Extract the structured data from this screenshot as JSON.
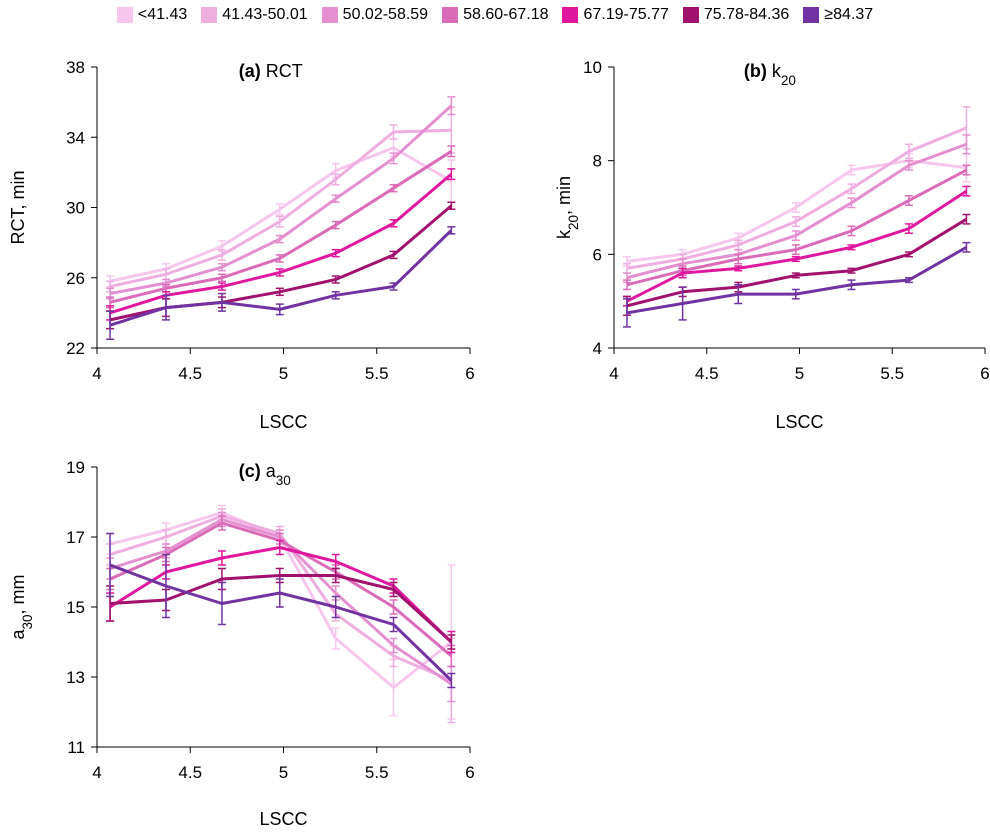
{
  "legend": [
    {
      "label": "<41.43",
      "color": "#f7c6ec"
    },
    {
      "label": "41.43-50.01",
      "color": "#efaee0"
    },
    {
      "label": "50.02-58.59",
      "color": "#e38fd0"
    },
    {
      "label": "58.60-67.18",
      "color": "#da6bb8"
    },
    {
      "label": "67.19-75.77",
      "color": "#e0179f"
    },
    {
      "label": "75.78-84.36",
      "color": "#a1126f"
    },
    {
      "label": "≥84.37",
      "color": "#7133a1"
    }
  ],
  "chart_data": [
    {
      "type": "line",
      "panel": "(a)",
      "title_main": "RCT",
      "ylabel_main": "RCT, min",
      "xlabel": "LSCC",
      "xlim": [
        4,
        6
      ],
      "ylim": [
        22,
        38
      ],
      "xticks": [
        4,
        4.5,
        5,
        5.5,
        6
      ],
      "yticks": [
        22,
        26,
        30,
        34,
        38
      ],
      "x": [
        4.07,
        4.37,
        4.67,
        4.98,
        5.28,
        5.59,
        5.9
      ],
      "series": [
        {
          "name": "<41.43",
          "values": [
            25.8,
            26.5,
            27.8,
            29.9,
            32.1,
            33.4,
            31.5
          ],
          "err": [
            0.3,
            0.3,
            0.3,
            0.3,
            0.4,
            0.5,
            1.2
          ]
        },
        {
          "name": "41.43-50.01",
          "values": [
            25.5,
            26.2,
            27.3,
            29.2,
            31.6,
            34.3,
            34.4
          ],
          "err": [
            0.3,
            0.3,
            0.3,
            0.3,
            0.3,
            0.4,
            1.3
          ]
        },
        {
          "name": "50.02-58.59",
          "values": [
            25.1,
            25.7,
            26.6,
            28.2,
            30.5,
            32.8,
            35.8
          ],
          "err": [
            0.3,
            0.2,
            0.2,
            0.2,
            0.2,
            0.3,
            0.5
          ]
        },
        {
          "name": "58.60-67.18",
          "values": [
            24.6,
            25.4,
            26.0,
            27.1,
            29.0,
            31.1,
            33.2
          ],
          "err": [
            0.3,
            0.2,
            0.2,
            0.2,
            0.2,
            0.2,
            0.3
          ]
        },
        {
          "name": "67.19-75.77",
          "values": [
            24.0,
            25.0,
            25.5,
            26.3,
            27.4,
            29.1,
            31.9
          ],
          "err": [
            0.4,
            0.2,
            0.2,
            0.2,
            0.2,
            0.2,
            0.3
          ]
        },
        {
          "name": "75.78-84.36",
          "values": [
            23.6,
            24.3,
            24.6,
            25.2,
            25.9,
            27.3,
            30.1
          ],
          "err": [
            0.5,
            0.5,
            0.3,
            0.2,
            0.2,
            0.2,
            0.2
          ]
        },
        {
          "name": "≥84.37",
          "values": [
            23.3,
            24.3,
            24.6,
            24.2,
            25.0,
            25.5,
            28.7
          ],
          "err": [
            0.8,
            0.7,
            0.5,
            0.3,
            0.2,
            0.2,
            0.2
          ]
        }
      ]
    },
    {
      "type": "line",
      "panel": "(b)",
      "title_main": "k",
      "title_sub": "20",
      "ylabel_main": "k",
      "ylabel_sub": "20",
      "ylabel_suffix": ", min",
      "xlabel": "LSCC",
      "xlim": [
        4,
        6
      ],
      "ylim": [
        4,
        10
      ],
      "xticks": [
        4,
        4.5,
        5,
        5.5,
        6
      ],
      "yticks": [
        4,
        6,
        8,
        10
      ],
      "x": [
        4.07,
        4.37,
        4.67,
        4.98,
        5.28,
        5.59,
        5.9
      ],
      "series": [
        {
          "name": "<41.43",
          "values": [
            5.85,
            6.0,
            6.35,
            7.0,
            7.8,
            8.0,
            7.85
          ],
          "err": [
            0.1,
            0.1,
            0.1,
            0.1,
            0.1,
            0.15,
            0.3
          ]
        },
        {
          "name": "41.43-50.01",
          "values": [
            5.7,
            5.9,
            6.2,
            6.7,
            7.4,
            8.2,
            8.7
          ],
          "err": [
            0.1,
            0.1,
            0.1,
            0.1,
            0.1,
            0.15,
            0.45
          ]
        },
        {
          "name": "50.02-58.59",
          "values": [
            5.5,
            5.8,
            6.0,
            6.4,
            7.1,
            7.9,
            8.35
          ],
          "err": [
            0.1,
            0.1,
            0.1,
            0.1,
            0.1,
            0.1,
            0.2
          ]
        },
        {
          "name": "58.60-67.18",
          "values": [
            5.35,
            5.65,
            5.9,
            6.1,
            6.5,
            7.15,
            7.8
          ],
          "err": [
            0.1,
            0.1,
            0.1,
            0.1,
            0.1,
            0.1,
            0.1
          ]
        },
        {
          "name": "67.19-75.77",
          "values": [
            5.0,
            5.6,
            5.7,
            5.9,
            6.15,
            6.55,
            7.35
          ],
          "err": [
            0.1,
            0.1,
            0.05,
            0.05,
            0.05,
            0.1,
            0.1
          ]
        },
        {
          "name": "75.78-84.36",
          "values": [
            4.9,
            5.2,
            5.3,
            5.55,
            5.65,
            6.0,
            6.75
          ],
          "err": [
            0.2,
            0.1,
            0.1,
            0.05,
            0.05,
            0.05,
            0.1
          ]
        },
        {
          "name": "≥84.37",
          "values": [
            4.75,
            4.95,
            5.15,
            5.15,
            5.35,
            5.45,
            6.15
          ],
          "err": [
            0.3,
            0.35,
            0.2,
            0.1,
            0.1,
            0.05,
            0.1
          ]
        }
      ]
    },
    {
      "type": "line",
      "panel": "(c)",
      "title_main": "a",
      "title_sub": "30",
      "ylabel_main": "a",
      "ylabel_sub": "30",
      "ylabel_suffix": ", mm",
      "xlabel": "LSCC",
      "xlim": [
        4,
        6
      ],
      "ylim": [
        11,
        19
      ],
      "xticks": [
        4,
        4.5,
        5,
        5.5,
        6
      ],
      "yticks": [
        11,
        13,
        15,
        17,
        19
      ],
      "x": [
        4.07,
        4.37,
        4.67,
        4.98,
        5.28,
        5.59,
        5.9
      ],
      "series": [
        {
          "name": "<41.43",
          "values": [
            16.8,
            17.2,
            17.7,
            17.0,
            14.1,
            12.7,
            14.0
          ],
          "err": [
            0.3,
            0.2,
            0.2,
            0.2,
            0.3,
            0.8,
            2.2
          ]
        },
        {
          "name": "41.43-50.01",
          "values": [
            16.5,
            17.0,
            17.6,
            17.1,
            14.8,
            13.6,
            12.9
          ],
          "err": [
            0.3,
            0.2,
            0.2,
            0.2,
            0.2,
            0.3,
            1.2
          ]
        },
        {
          "name": "50.02-58.59",
          "values": [
            16.1,
            16.6,
            17.5,
            17.0,
            15.4,
            13.9,
            12.8
          ],
          "err": [
            0.3,
            0.2,
            0.2,
            0.2,
            0.2,
            0.2,
            0.5
          ]
        },
        {
          "name": "58.60-67.18",
          "values": [
            15.8,
            16.5,
            17.4,
            16.9,
            16.0,
            15.0,
            13.6
          ],
          "err": [
            0.3,
            0.2,
            0.2,
            0.2,
            0.2,
            0.2,
            0.3
          ]
        },
        {
          "name": "67.19-75.77",
          "values": [
            15.0,
            16.0,
            16.4,
            16.7,
            16.3,
            15.6,
            14.0
          ],
          "err": [
            0.4,
            0.2,
            0.2,
            0.2,
            0.2,
            0.2,
            0.3
          ]
        },
        {
          "name": "75.78-84.36",
          "values": [
            15.1,
            15.2,
            15.8,
            15.9,
            15.9,
            15.5,
            14.0
          ],
          "err": [
            0.5,
            0.3,
            0.3,
            0.2,
            0.2,
            0.2,
            0.2
          ]
        },
        {
          "name": "≥84.37",
          "values": [
            16.2,
            15.6,
            15.1,
            15.4,
            15.0,
            14.5,
            12.9
          ],
          "err": [
            0.9,
            0.9,
            0.6,
            0.4,
            0.3,
            0.2,
            0.2
          ]
        }
      ]
    }
  ]
}
